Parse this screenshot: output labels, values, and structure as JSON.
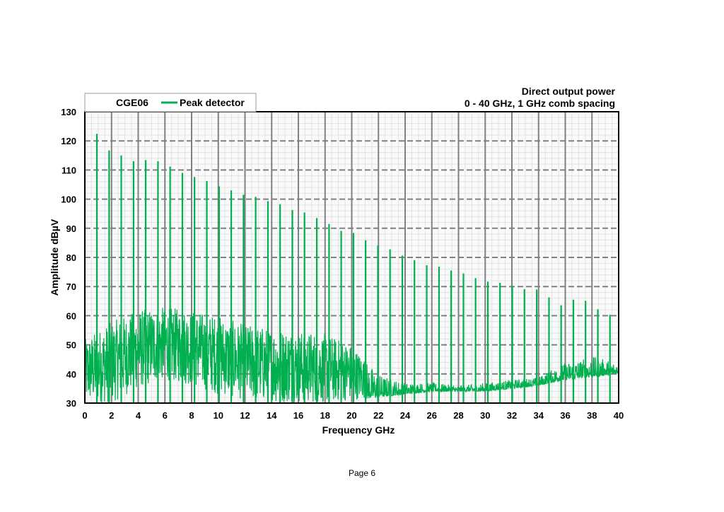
{
  "page_label": "Page 6",
  "chart_data": {
    "type": "line",
    "title_line1": "Direct output power",
    "title_line2": "0 - 40 GHz, 1 GHz comb spacing",
    "legend": {
      "device": "CGE06",
      "series_name": "Peak detector",
      "placement": "top-left"
    },
    "xlabel": "Frequency GHz",
    "ylabel": "Amplitude dBµV",
    "xlim": [
      0,
      40
    ],
    "ylim": [
      30,
      130
    ],
    "xticks": [
      "0",
      "2",
      "4",
      "6",
      "8",
      "10",
      "12",
      "14",
      "16",
      "18",
      "20",
      "22",
      "24",
      "26",
      "28",
      "30",
      "32",
      "34",
      "36",
      "38",
      "40"
    ],
    "yticks": [
      "30",
      "40",
      "50",
      "60",
      "70",
      "80",
      "90",
      "100",
      "110",
      "120",
      "130"
    ],
    "grid": true,
    "color": "#00b050",
    "comb_peaks": {
      "freq_ghz": [
        0.9,
        1.82,
        2.73,
        3.65,
        4.56,
        5.48,
        6.39,
        7.31,
        8.22,
        9.14,
        10.06,
        10.97,
        11.89,
        12.8,
        13.72,
        14.63,
        15.55,
        16.46,
        17.38,
        18.3,
        19.21,
        20.13,
        21.04,
        21.96,
        22.87,
        23.79,
        24.7,
        25.62,
        26.54,
        27.45,
        28.37,
        29.28,
        30.2,
        31.11,
        32.03,
        32.94,
        33.86,
        34.78,
        35.69,
        36.61,
        37.52,
        38.44,
        39.35
      ],
      "amplitude_dbuv": [
        122.4,
        116.7,
        115,
        113,
        113.4,
        113,
        111.2,
        109,
        107.6,
        106.2,
        104.4,
        103,
        101.5,
        100.8,
        99.3,
        98.3,
        96.3,
        95.4,
        93.5,
        91.5,
        89.1,
        88.4,
        85.9,
        84.1,
        82.8,
        80.6,
        79.1,
        77.3,
        76.8,
        75.5,
        74.5,
        72.9,
        71.7,
        71.3,
        70.2,
        69.1,
        69,
        66.3,
        63.6,
        65.5,
        65.1,
        62.2,
        60.3
      ]
    },
    "noise_floor": {
      "freq_ghz": [
        0,
        2,
        4,
        6,
        8,
        10,
        12,
        14,
        16,
        18,
        20,
        22,
        24,
        26,
        28,
        30,
        32,
        34,
        36,
        38,
        40
      ],
      "low_dbuv": [
        30,
        30,
        35,
        38,
        36,
        33,
        31,
        30,
        30,
        30,
        31,
        32,
        33,
        34,
        34,
        34,
        35,
        36,
        38,
        39,
        40
      ],
      "high_dbuv": [
        52,
        58,
        62,
        63,
        62,
        60,
        57,
        56,
        55,
        54,
        50,
        40,
        37,
        37,
        36,
        37,
        38,
        39,
        44,
        46,
        44
      ]
    }
  }
}
